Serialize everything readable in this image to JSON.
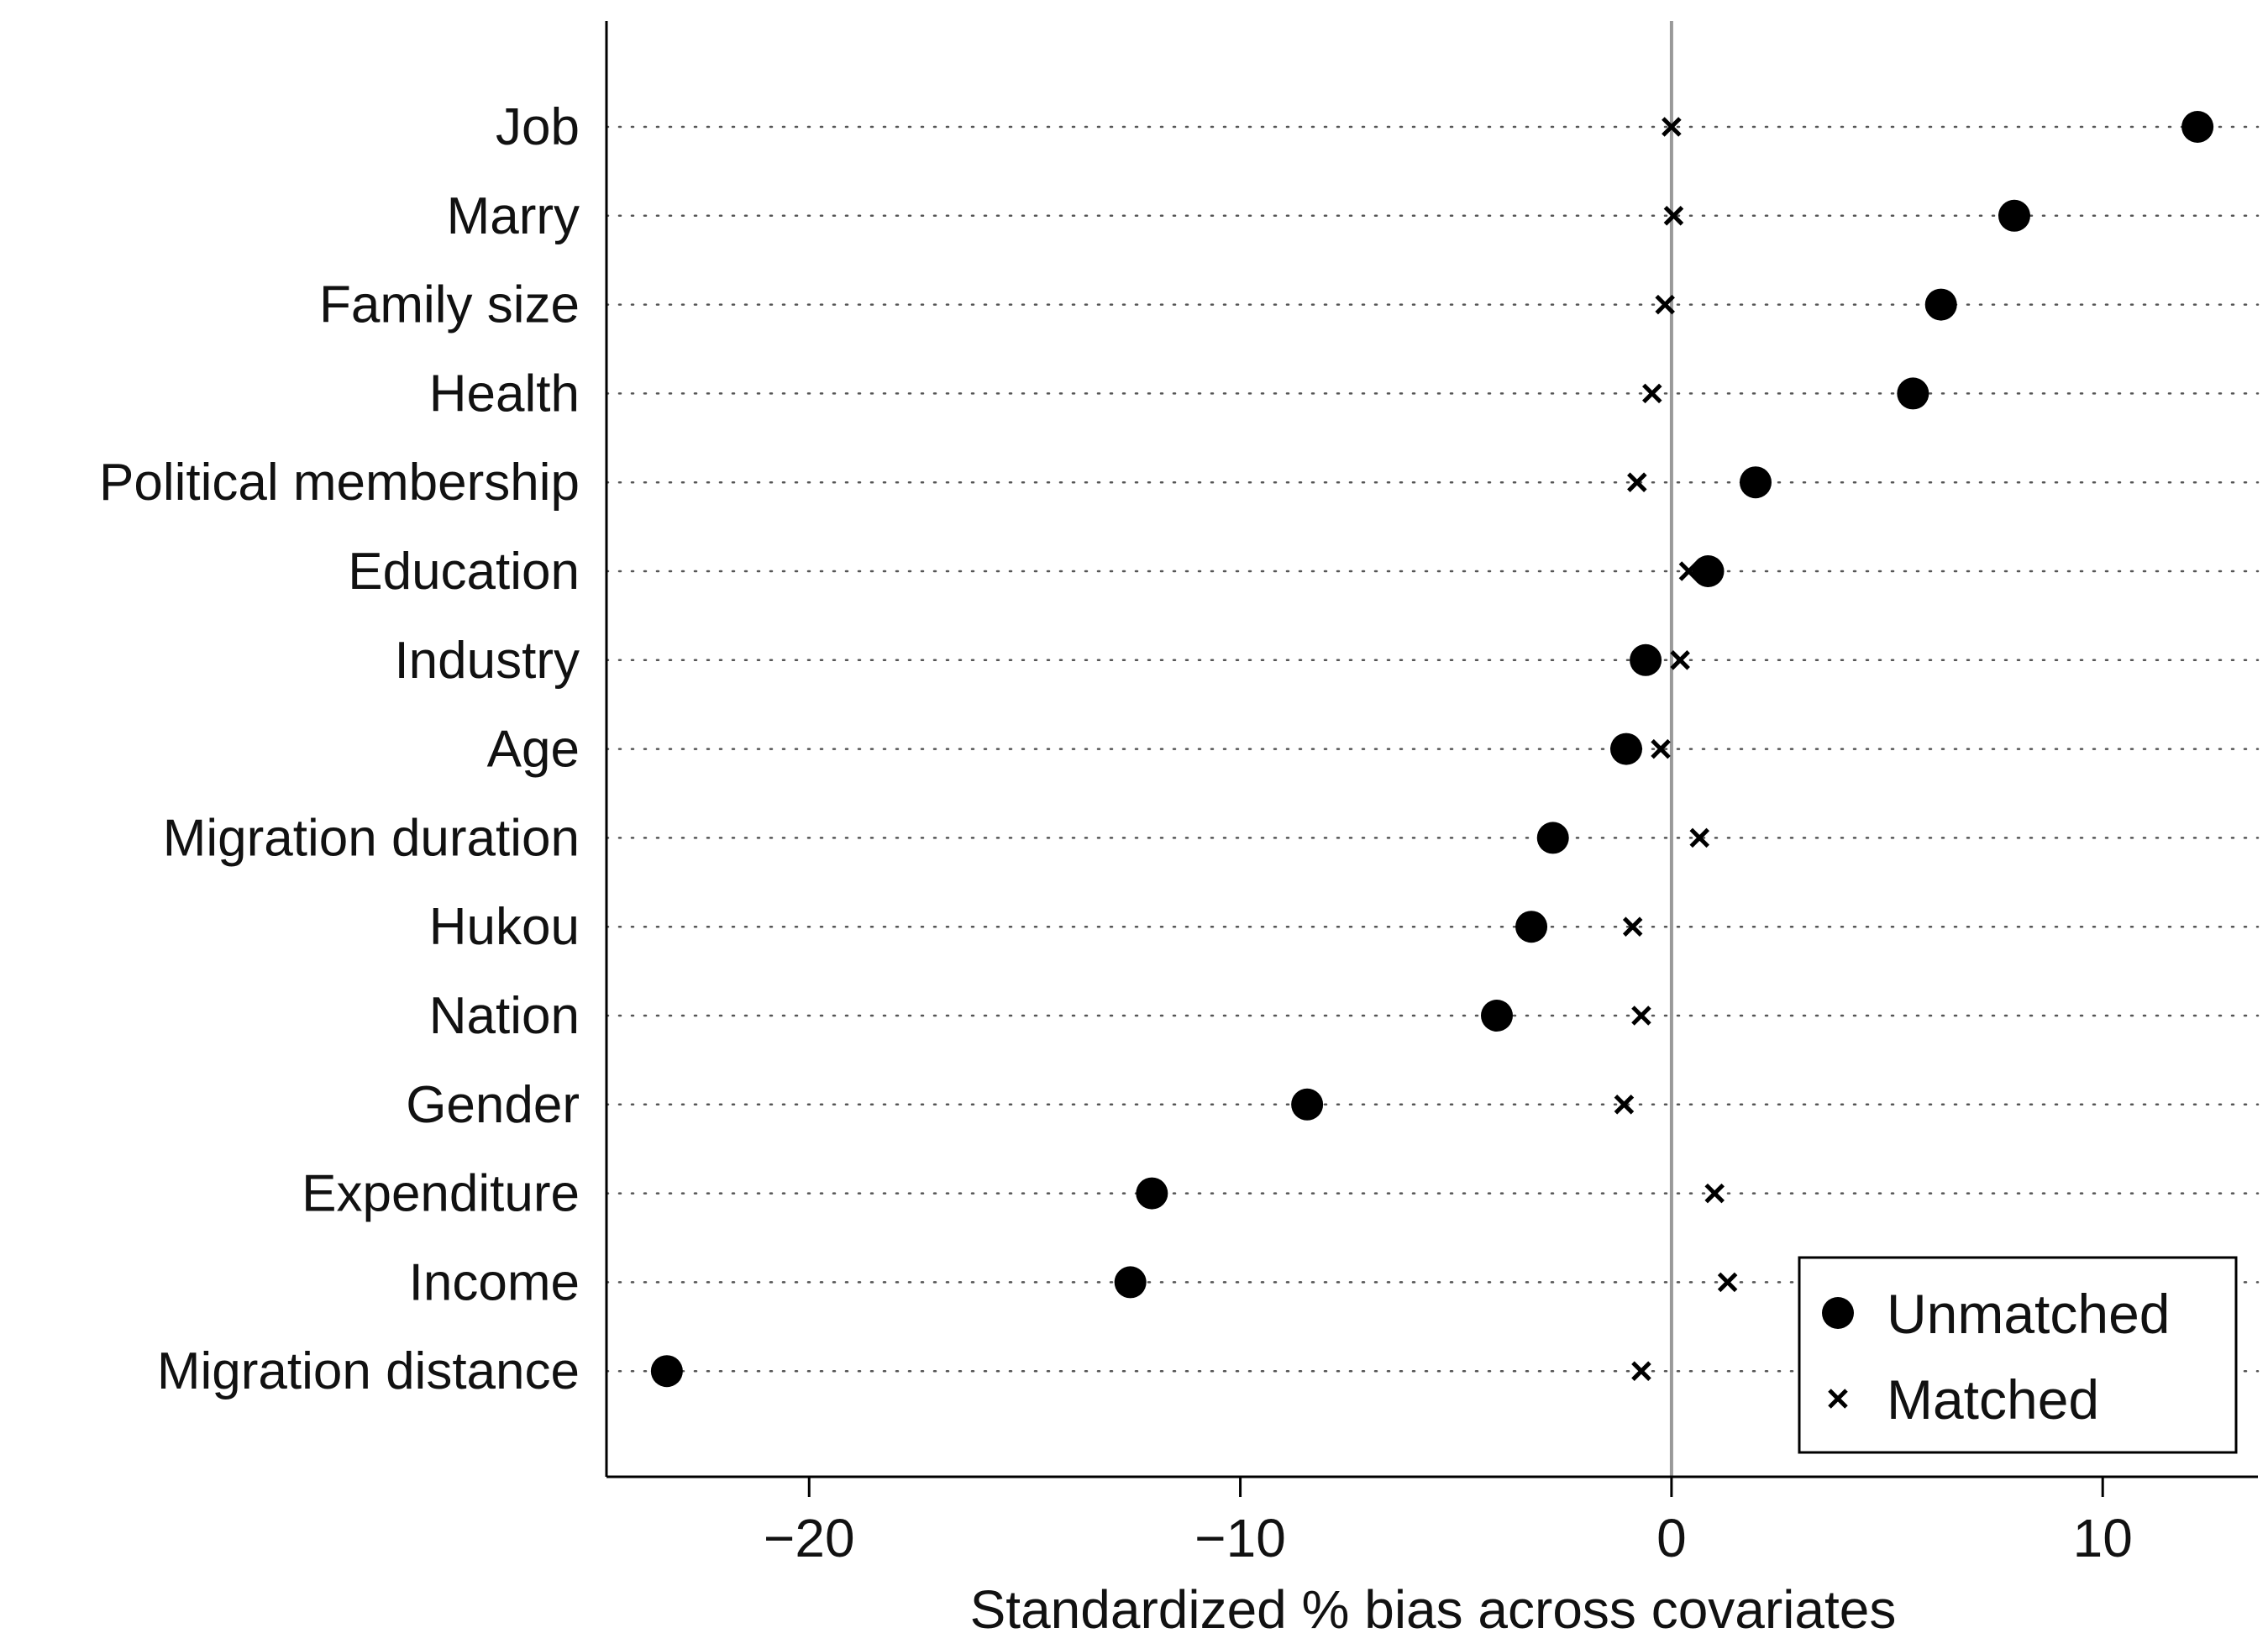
{
  "chart_data": {
    "type": "scatter",
    "title": "",
    "xlabel": "Standardized % bias across covariates",
    "ylabel": "",
    "xlim": [
      -24.7,
      13.6
    ],
    "xticks": [
      -20,
      -10,
      0,
      10
    ],
    "xtick_labels": [
      "−20",
      "−10",
      "0",
      "10"
    ],
    "reference_line": 0,
    "grid": "dotted horizontal per covariate",
    "legend_position": "bottom-right",
    "categories": [
      "Job",
      "Marry",
      "Family size",
      "Health",
      "Political membership",
      "Education",
      "Industry",
      "Age",
      "Migration duration",
      "Hukou",
      "Nation",
      "Gender",
      "Expenditure",
      "Income",
      "Migration distance"
    ],
    "series": [
      {
        "name": "Unmatched",
        "marker": "filled-circle",
        "values": [
          12.2,
          7.95,
          6.25,
          5.6,
          1.95,
          0.85,
          -0.6,
          -1.05,
          -2.75,
          -3.25,
          -4.05,
          -8.45,
          -12.05,
          -12.55,
          -23.3
        ]
      },
      {
        "name": "Matched",
        "marker": "x",
        "values": [
          0.0,
          0.05,
          -0.15,
          -0.45,
          -0.8,
          0.4,
          0.2,
          -0.25,
          0.65,
          -0.9,
          -0.7,
          -1.1,
          1.0,
          1.3,
          -0.7
        ]
      }
    ],
    "colors": {
      "markers": "#000000",
      "reference_line": "#999999",
      "axis": "#000000",
      "grid": "#555555"
    }
  }
}
